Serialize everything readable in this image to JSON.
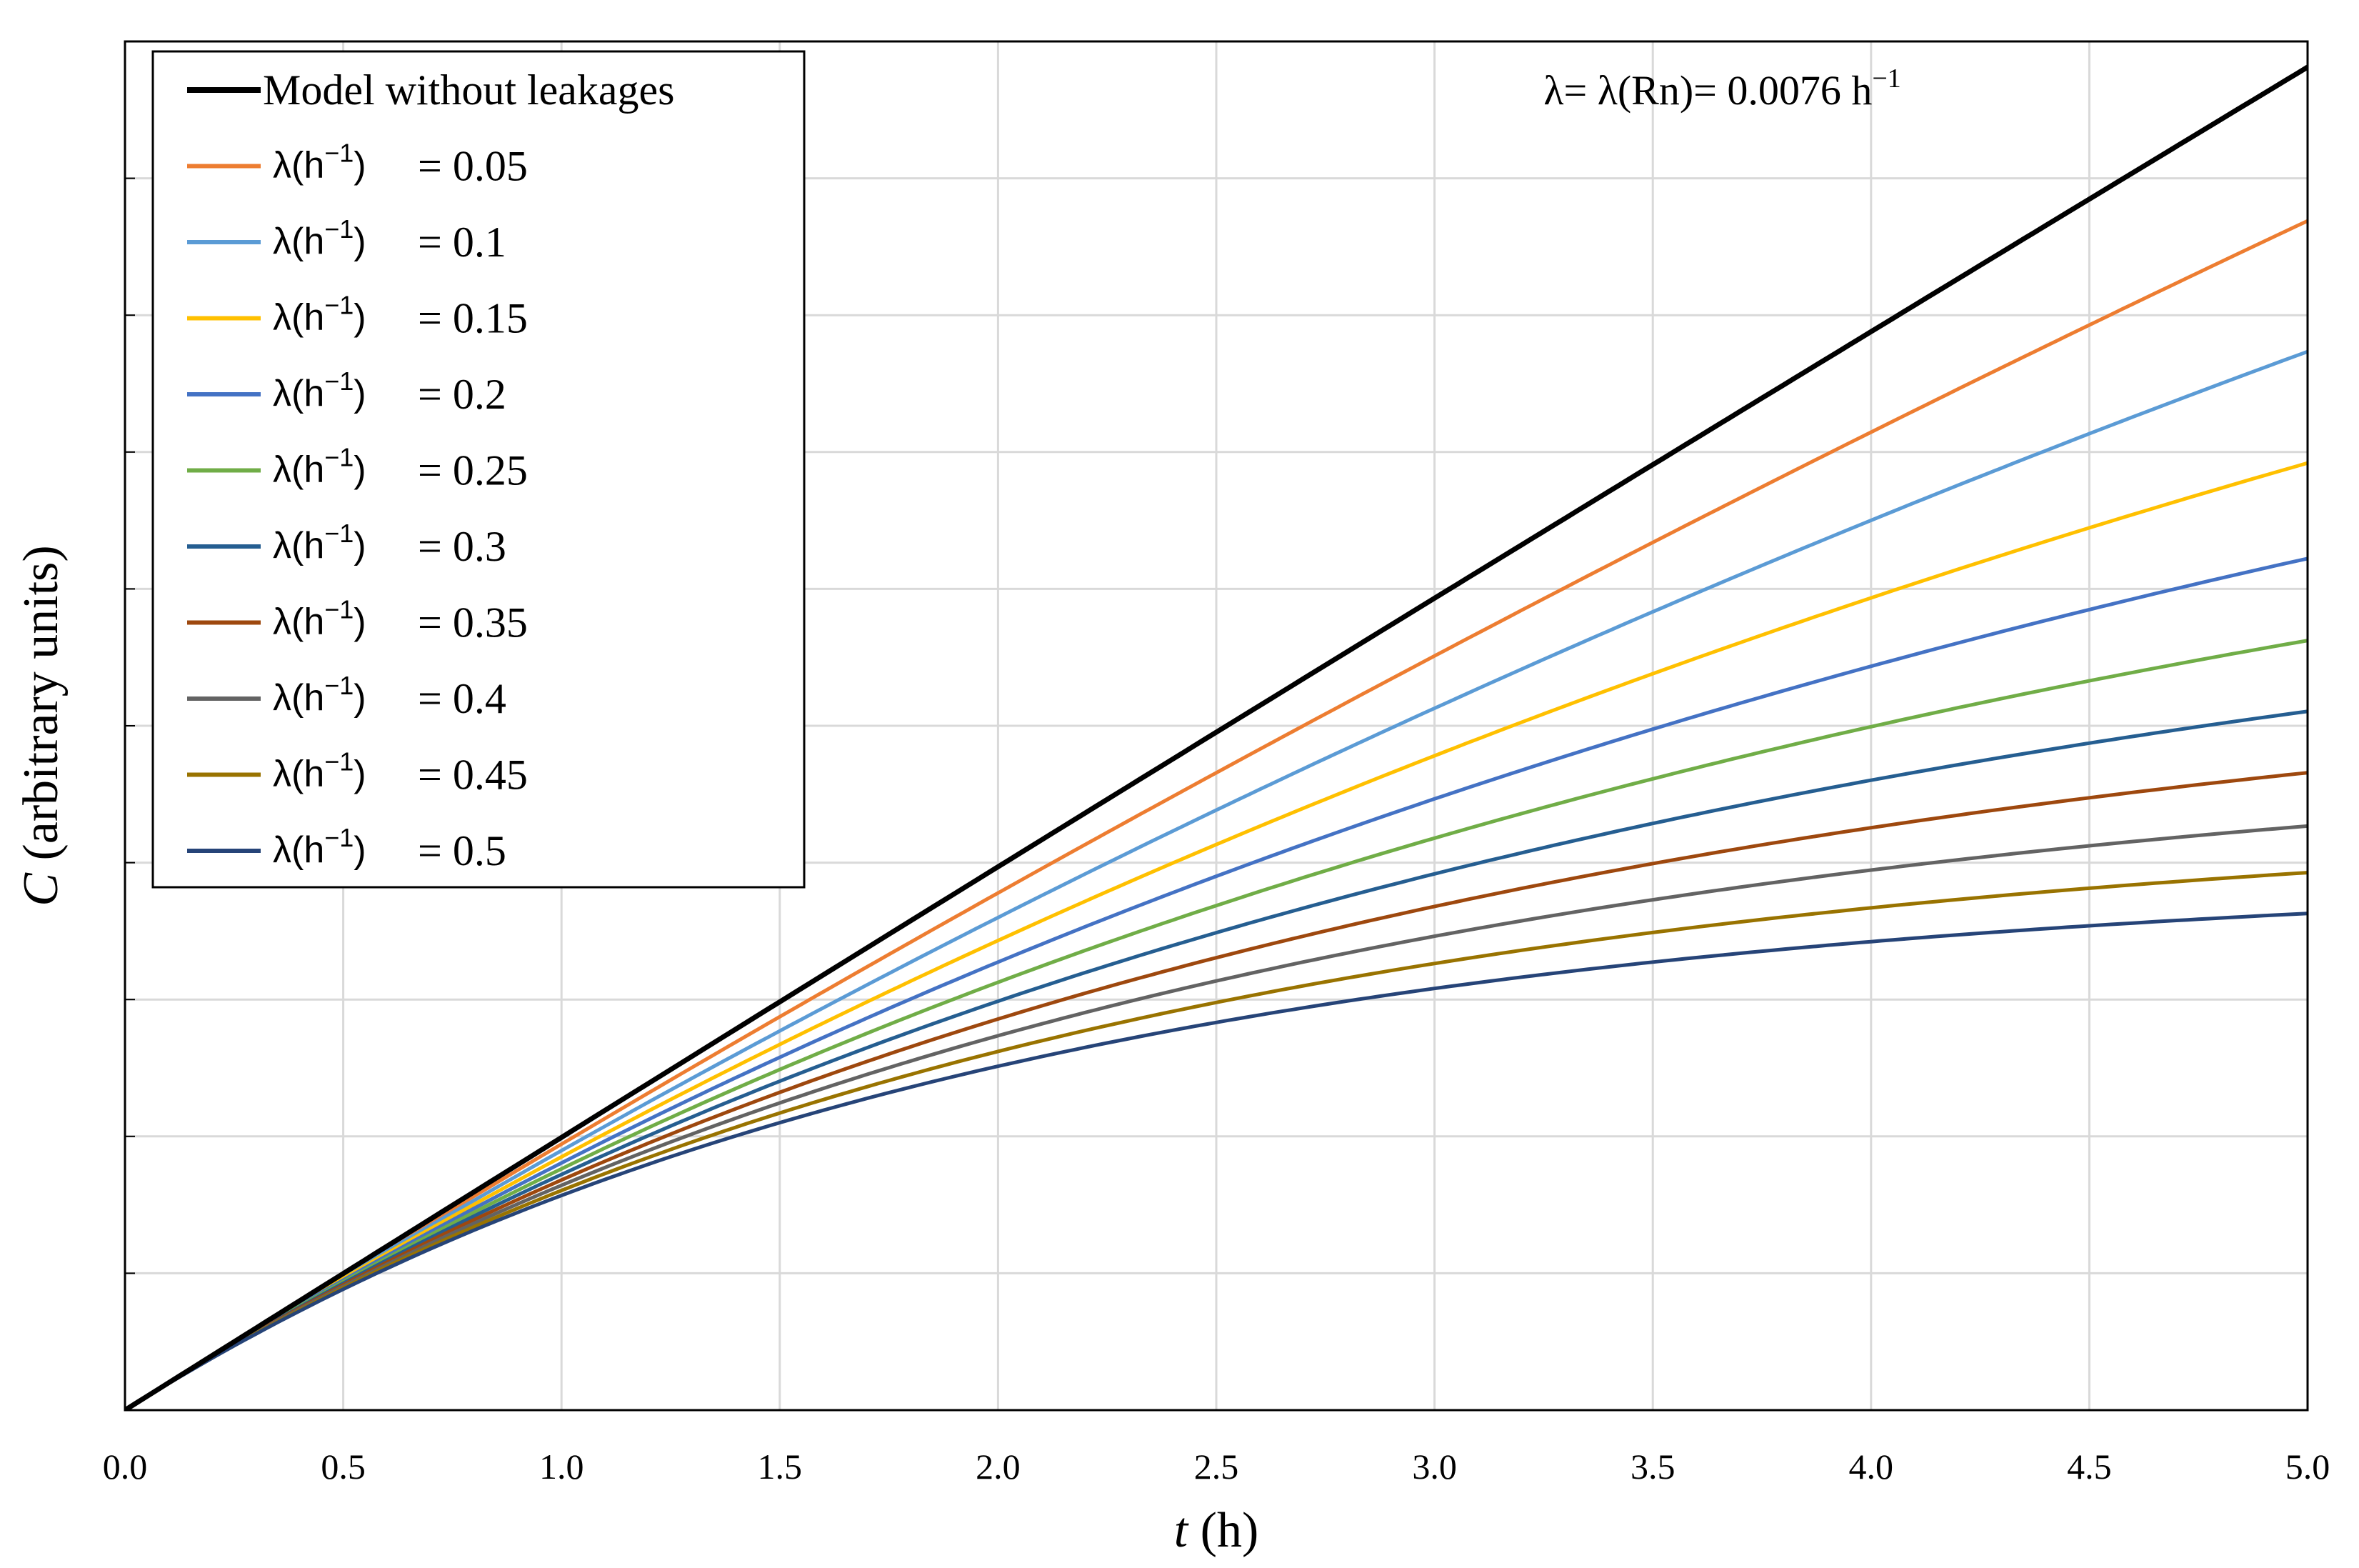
{
  "chart_data": {
    "type": "line",
    "title": "",
    "xlabel_var": "t",
    "xlabel_unit": " (h)",
    "ylabel_var": "C",
    "ylabel_rest": " (arbitrary units)",
    "xlim": [
      0,
      5
    ],
    "ylim": [
      0,
      5
    ],
    "grid": true,
    "legend_position": "top-left",
    "x_ticks": [
      "0.0",
      "0.5",
      "1.0",
      "1.5",
      "2.0",
      "2.5",
      "3.0",
      "3.5",
      "4.0",
      "4.5",
      "5.0"
    ],
    "y_gridlines": [
      0.5,
      1.0,
      1.5,
      2.0,
      2.5,
      3.0,
      3.5,
      4.0,
      4.5
    ],
    "annotation": {
      "text": "λ= λ(Rn)= 0.0076 h",
      "superscript": "−1",
      "x": 3.25,
      "y": 4.77
    },
    "legend_lambda_prefix": "λ(h",
    "legend_lambda_sup": "−1",
    "legend_lambda_close": ")",
    "decay_constant": 0.0076,
    "series": [
      {
        "name": "Model without leakages",
        "leak": 0,
        "color": "#000000",
        "label_full": "Model without leakages",
        "label_value": ""
      },
      {
        "name": "λ(h−1) = 0.05",
        "leak": 0.05,
        "color": "#ED7D31",
        "label_value": "= 0.05"
      },
      {
        "name": "λ(h−1) = 0.1",
        "leak": 0.1,
        "color": "#5B9BD5",
        "label_value": "= 0.1"
      },
      {
        "name": "λ(h−1) = 0.15",
        "leak": 0.15,
        "color": "#FFC000",
        "label_value": "= 0.15"
      },
      {
        "name": "λ(h−1) = 0.2",
        "leak": 0.2,
        "color": "#4472C4",
        "label_value": "= 0.2"
      },
      {
        "name": "λ(h−1) = 0.25",
        "leak": 0.25,
        "color": "#70AD47",
        "label_value": "= 0.25"
      },
      {
        "name": "λ(h−1) = 0.3",
        "leak": 0.3,
        "color": "#255E91",
        "label_value": "= 0.3"
      },
      {
        "name": "λ(h−1) = 0.35",
        "leak": 0.35,
        "color": "#9E480E",
        "label_value": "= 0.35"
      },
      {
        "name": "λ(h−1) = 0.4",
        "leak": 0.4,
        "color": "#636363",
        "label_value": "= 0.4"
      },
      {
        "name": "λ(h−1) = 0.45",
        "leak": 0.45,
        "color": "#997300",
        "label_value": "= 0.45"
      },
      {
        "name": "λ(h−1) = 0.5",
        "leak": 0.5,
        "color": "#264478",
        "label_value": "= 0.5"
      }
    ]
  }
}
